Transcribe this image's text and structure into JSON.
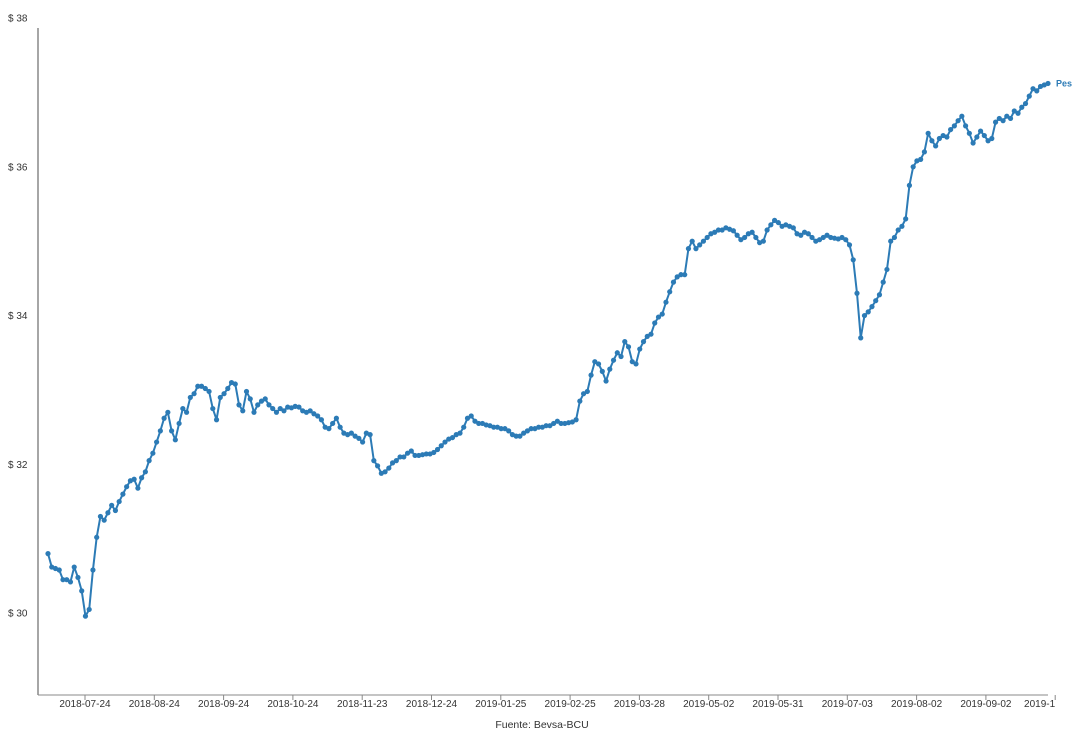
{
  "chart_data": {
    "type": "line",
    "title": "",
    "xlabel": "",
    "ylabel": "",
    "source": "Fuente: Bevsa-BCU",
    "ylim": [
      28.9,
      38
    ],
    "y_ticks": [
      {
        "value": 30,
        "label": "$ 30"
      },
      {
        "value": 32,
        "label": "$ 32"
      },
      {
        "value": 34,
        "label": "$ 34"
      },
      {
        "value": 36,
        "label": "$ 36"
      },
      {
        "value": 38,
        "label": "$ 38"
      }
    ],
    "x_ticks": [
      "2018-07-24",
      "2018-08-24",
      "2018-09-24",
      "2018-10-24",
      "2018-11-23",
      "2018-12-24",
      "2019-01-25",
      "2019-02-25",
      "2019-03-28",
      "2019-05-02",
      "2019-05-31",
      "2019-07-03",
      "2019-08-02",
      "2019-09-02",
      "2019-1"
    ],
    "series": [
      {
        "name": "Pes",
        "color": "#2c7bb6",
        "marker": "circle",
        "values": [
          30.8,
          30.62,
          30.6,
          30.58,
          30.45,
          30.45,
          30.42,
          30.62,
          30.48,
          30.3,
          29.96,
          30.05,
          30.58,
          31.02,
          31.3,
          31.25,
          31.35,
          31.45,
          31.38,
          31.5,
          31.6,
          31.7,
          31.78,
          31.8,
          31.68,
          31.82,
          31.9,
          32.05,
          32.15,
          32.3,
          32.45,
          32.62,
          32.7,
          32.45,
          32.33,
          32.55,
          32.75,
          32.7,
          32.9,
          32.95,
          33.05,
          33.05,
          33.02,
          32.98,
          32.75,
          32.6,
          32.9,
          32.95,
          33.02,
          33.1,
          33.08,
          32.8,
          32.72,
          32.98,
          32.88,
          32.7,
          32.8,
          32.85,
          32.88,
          32.8,
          32.75,
          32.7,
          32.75,
          32.72,
          32.77,
          32.76,
          32.78,
          32.77,
          32.72,
          32.7,
          32.72,
          32.68,
          32.65,
          32.6,
          32.5,
          32.48,
          32.55,
          32.62,
          32.5,
          32.42,
          32.4,
          32.42,
          32.38,
          32.35,
          32.3,
          32.42,
          32.4,
          32.05,
          31.98,
          31.88,
          31.9,
          31.95,
          32.02,
          32.05,
          32.1,
          32.1,
          32.15,
          32.18,
          32.12,
          32.12,
          32.13,
          32.14,
          32.14,
          32.16,
          32.2,
          32.25,
          32.3,
          32.34,
          32.36,
          32.4,
          32.42,
          32.5,
          32.62,
          32.65,
          32.58,
          32.55,
          32.55,
          32.53,
          32.52,
          32.5,
          32.5,
          32.48,
          32.48,
          32.45,
          32.4,
          32.38,
          32.38,
          32.42,
          32.45,
          32.48,
          32.48,
          32.5,
          32.5,
          32.52,
          32.52,
          32.55,
          32.58,
          32.55,
          32.55,
          32.56,
          32.57,
          32.6,
          32.85,
          32.95,
          32.98,
          33.2,
          33.38,
          33.35,
          33.25,
          33.12,
          33.28,
          33.4,
          33.5,
          33.45,
          33.65,
          33.58,
          33.38,
          33.35,
          33.55,
          33.65,
          33.72,
          33.75,
          33.9,
          33.98,
          34.02,
          34.18,
          34.32,
          34.45,
          34.52,
          34.55,
          34.55,
          34.9,
          35.0,
          34.9,
          34.95,
          35.0,
          35.05,
          35.1,
          35.12,
          35.15,
          35.15,
          35.18,
          35.16,
          35.14,
          35.08,
          35.02,
          35.05,
          35.1,
          35.12,
          35.05,
          34.98,
          35.0,
          35.15,
          35.22,
          35.28,
          35.25,
          35.2,
          35.22,
          35.2,
          35.18,
          35.1,
          35.08,
          35.12,
          35.1,
          35.05,
          35.0,
          35.02,
          35.05,
          35.08,
          35.05,
          35.04,
          35.03,
          35.05,
          35.02,
          34.95,
          34.75,
          34.3,
          33.7,
          34.0,
          34.05,
          34.12,
          34.2,
          34.28,
          34.45,
          34.62,
          35.0,
          35.05,
          35.15,
          35.2,
          35.3,
          35.75,
          36.0,
          36.08,
          36.1,
          36.2,
          36.45,
          36.35,
          36.28,
          36.38,
          36.42,
          36.4,
          36.5,
          36.55,
          36.62,
          36.68,
          36.55,
          36.45,
          36.32,
          36.4,
          36.48,
          36.42,
          36.35,
          36.38,
          36.6,
          36.65,
          36.62,
          36.68,
          36.65,
          36.75,
          36.72,
          36.8,
          36.85,
          36.95,
          37.05,
          37.02,
          37.08,
          37.1,
          37.12
        ]
      }
    ],
    "grid": false,
    "legend": "inline-end"
  }
}
